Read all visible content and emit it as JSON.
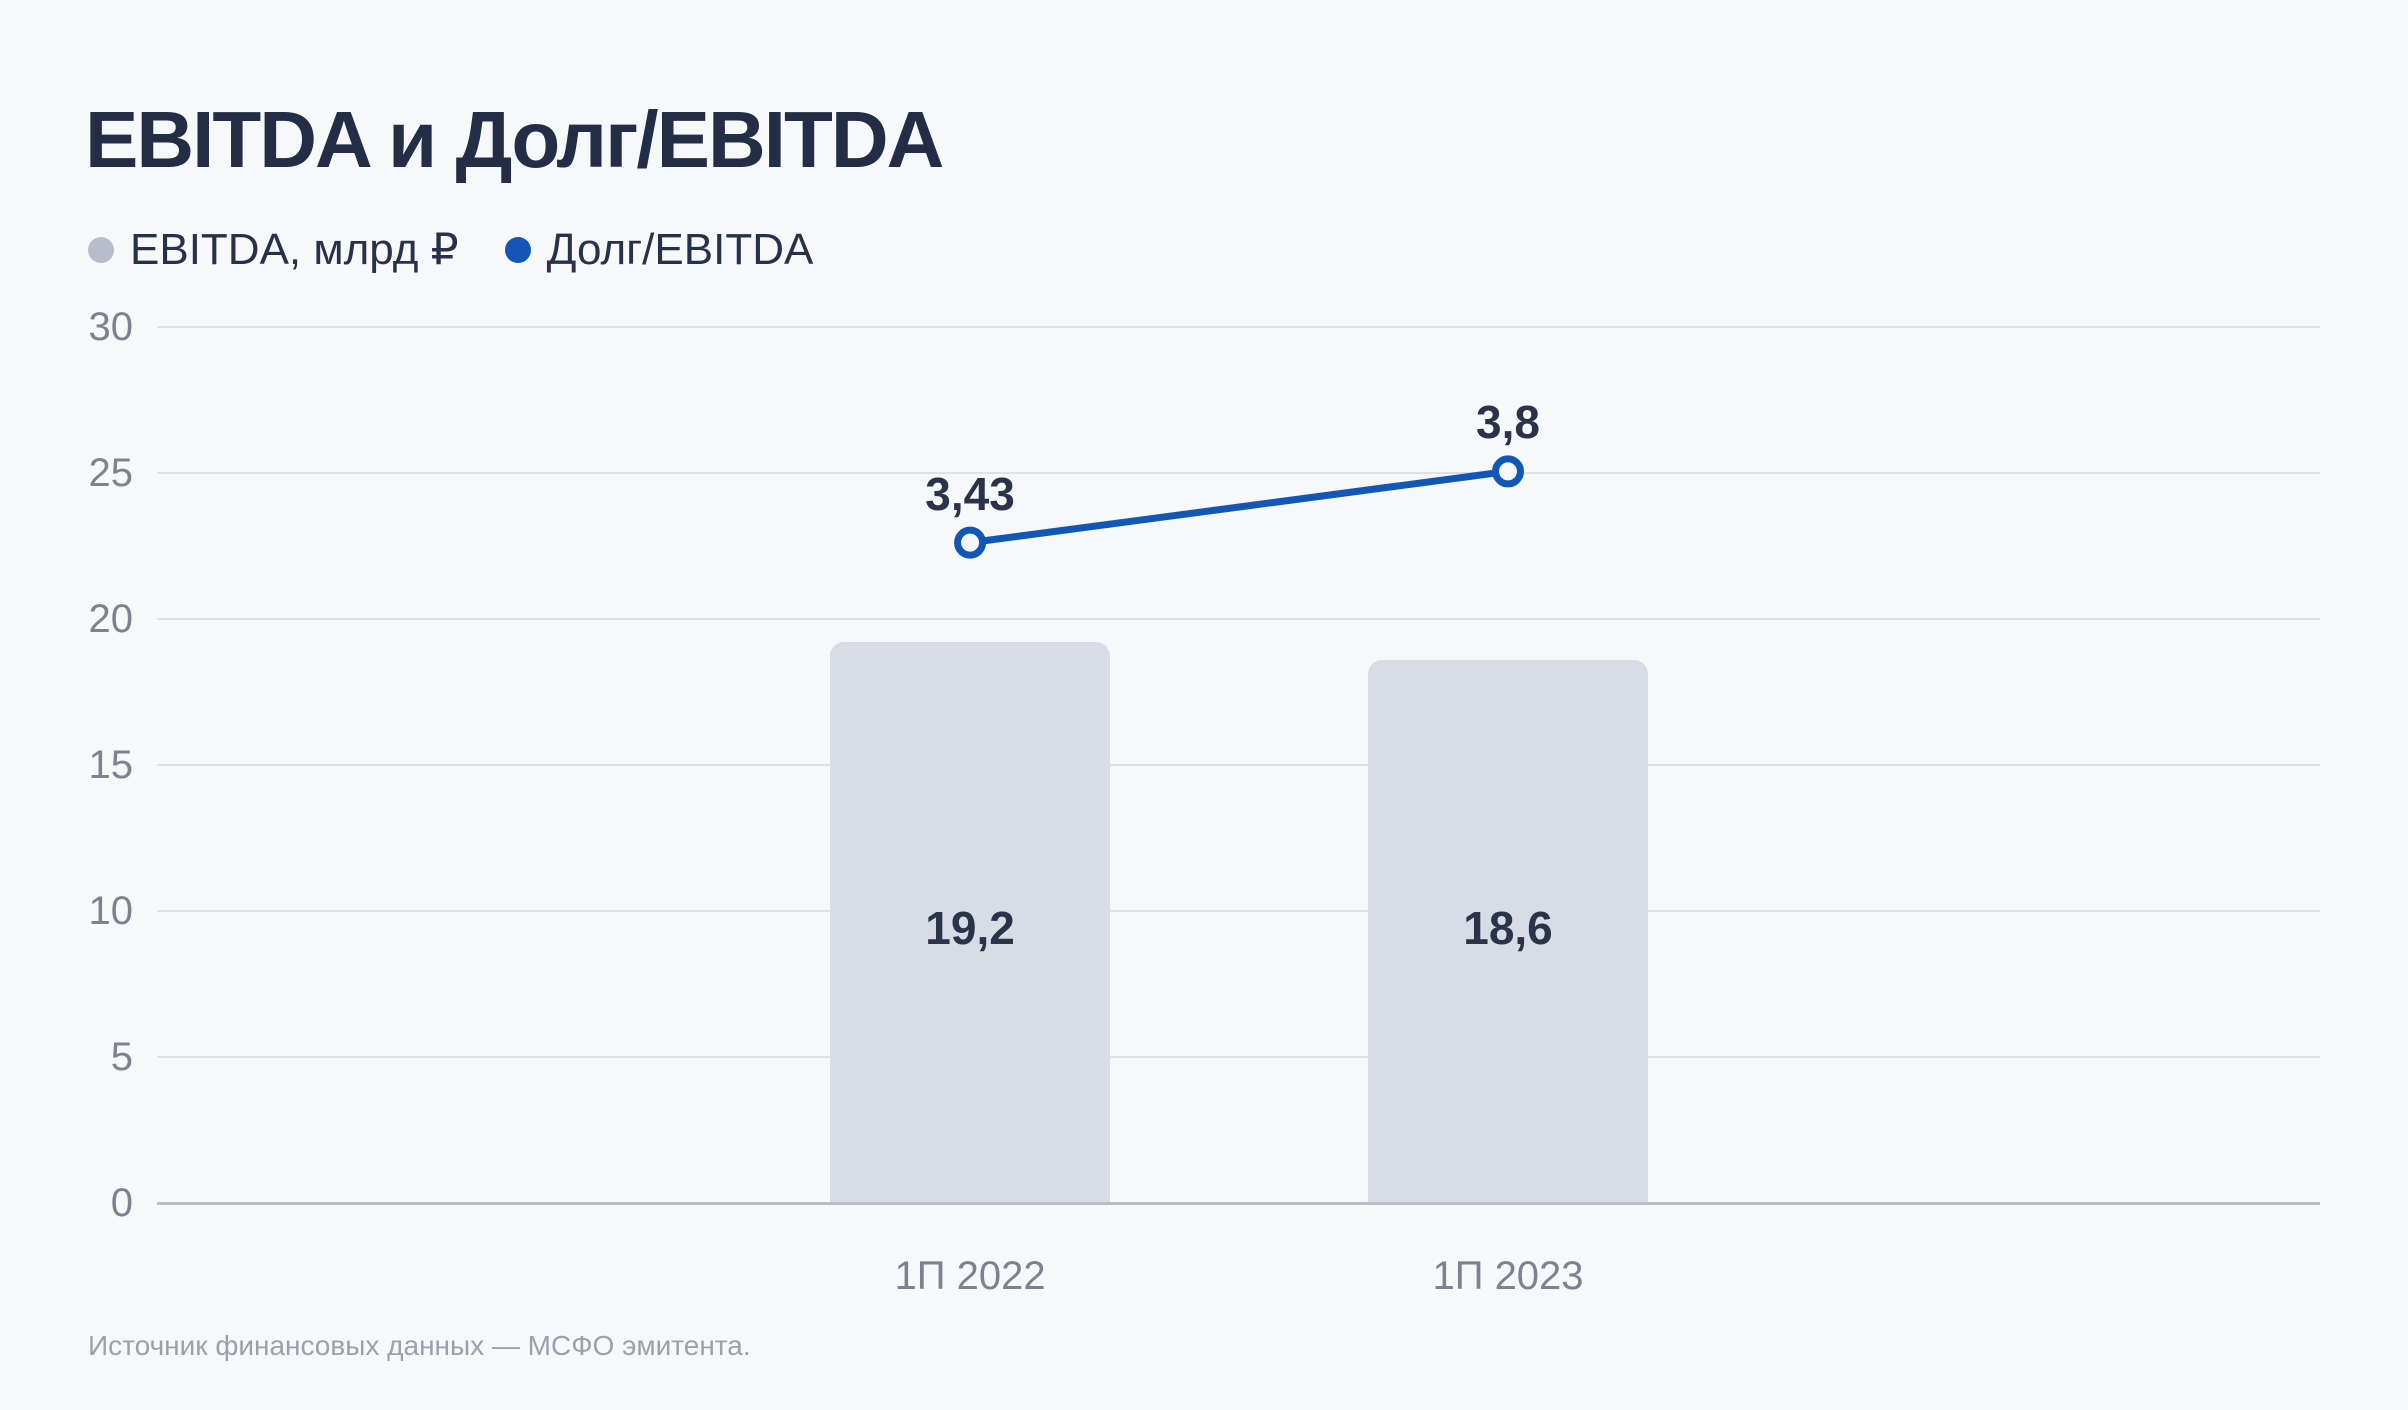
{
  "page": {
    "background": "#f7f8fa"
  },
  "header": {
    "title": "EBITDA и Долг/EBITDA"
  },
  "legend": [
    {
      "label": "EBITDA, млрд ₽",
      "color": "#b9bdcb",
      "marker": "dot"
    },
    {
      "label": "Долг/EBITDA",
      "color": "#1356b5",
      "marker": "dot"
    }
  ],
  "chart_data": {
    "type": "bar+line",
    "categories": [
      "1П 2022",
      "1П 2023"
    ],
    "series": [
      {
        "name": "EBITDA, млрд ₽",
        "type": "bar",
        "values": [
          19.2,
          18.6
        ],
        "labels": [
          "19,2",
          "18,6"
        ],
        "color": "#d7dce6",
        "axis": "left"
      },
      {
        "name": "Долг/EBITDA",
        "type": "line",
        "values": [
          3.43,
          3.8
        ],
        "labels": [
          "3,43",
          "3,8"
        ],
        "color": "#1257b6",
        "axis": "secondary-hidden"
      }
    ],
    "title": "EBITDA и Долг/EBITDA",
    "xlabel": "",
    "ylabel": "",
    "ylim": [
      0,
      30
    ],
    "yticks": [
      0,
      5,
      10,
      15,
      20,
      25,
      30
    ],
    "y2lim": [
      0,
      4.55
    ],
    "grid": "horizontal",
    "legend_position": "top-left",
    "colors": {
      "background": "#f7f8fa",
      "gridline": "#dfe1e6",
      "baseline": "#b9bcc3",
      "tick_text": "#7c8290",
      "value_text": "#2a3349",
      "title_text": "#232d46"
    }
  },
  "footer": {
    "source": "Источник финансовых данных — МСФО эмитента."
  }
}
